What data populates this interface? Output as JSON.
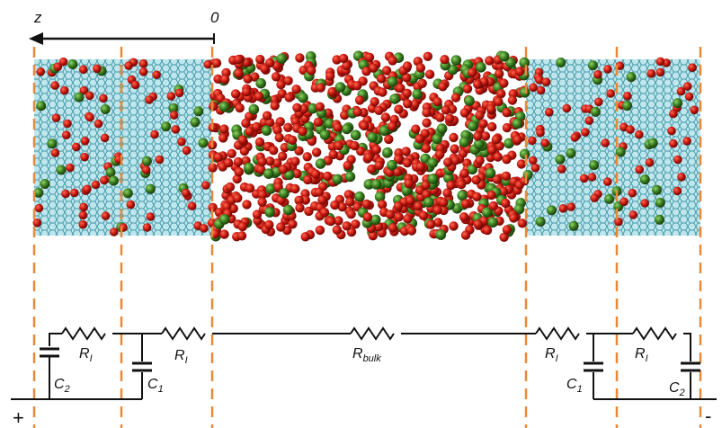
{
  "axis": {
    "direction_label": "z",
    "origin_label": "0"
  },
  "terminals": {
    "positive": "+",
    "negative": "-"
  },
  "circuit": {
    "left_R1": {
      "main": "R",
      "sub": "I"
    },
    "left_R2": {
      "main": "R",
      "sub": "I"
    },
    "bulk": {
      "main": "R",
      "sub": "bulk"
    },
    "right_R1": {
      "main": "R",
      "sub": "I"
    },
    "right_R2": {
      "main": "R",
      "sub": "I"
    },
    "left_C2": {
      "main": "C",
      "sub": "2"
    },
    "left_C1": {
      "main": "C",
      "sub": "1"
    },
    "right_C1": {
      "main": "C",
      "sub": "1"
    },
    "right_C2": {
      "main": "C",
      "sub": "2"
    }
  },
  "colors": {
    "electrode": "#6cc3cf",
    "electrode_dark": "#3e96a6",
    "cation": "#c81a10",
    "anion": "#3b7f1f",
    "boundary": "#e8893a",
    "wire": "#111111"
  }
}
